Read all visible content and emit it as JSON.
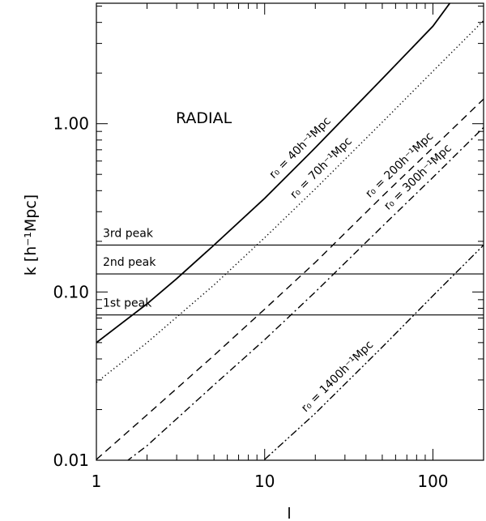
{
  "chart_data": {
    "type": "line",
    "title": "",
    "panel_label": "RADIAL",
    "xlabel": "l",
    "ylabel": "k [h⁻¹Mpc]",
    "x_scale": "log",
    "y_scale": "log",
    "xlim": [
      1,
      200
    ],
    "ylim": [
      0.01,
      5.2
    ],
    "grid": false,
    "x_ticks": [
      {
        "value": 1,
        "label": "1"
      },
      {
        "value": 10,
        "label": "10"
      },
      {
        "value": 100,
        "label": "100"
      }
    ],
    "y_ticks": [
      {
        "value": 0.01,
        "label": "0.01"
      },
      {
        "value": 0.1,
        "label": "0.10"
      },
      {
        "value": 1,
        "label": "1.00"
      }
    ],
    "peaks": [
      {
        "label": "3rd peak",
        "k": 0.19
      },
      {
        "label": "2nd peak",
        "k": 0.128
      },
      {
        "label": "1st peak",
        "k": 0.073
      }
    ],
    "series": [
      {
        "name": "r₀ = 40h⁻¹Mpc",
        "dash": "solid",
        "x": [
          1,
          2,
          3,
          5,
          10,
          20,
          50,
          100,
          126
        ],
        "y": [
          0.05,
          0.085,
          0.12,
          0.19,
          0.36,
          0.72,
          1.85,
          3.8,
          5.2
        ]
      },
      {
        "name": "r₀ = 70h⁻¹Mpc",
        "dash": "dotted",
        "x": [
          1,
          2,
          5,
          10,
          20,
          50,
          100,
          200
        ],
        "y": [
          0.029,
          0.05,
          0.11,
          0.21,
          0.41,
          1.02,
          2.05,
          4.1
        ]
      },
      {
        "name": "r₀ = 200h⁻¹Mpc",
        "dash": "dashed",
        "x": [
          1,
          2,
          5,
          10,
          20,
          50,
          100,
          200
        ],
        "y": [
          0.0101,
          0.0186,
          0.042,
          0.079,
          0.15,
          0.37,
          0.72,
          1.4
        ]
      },
      {
        "name": "r₀ = 300h⁻¹Mpc",
        "dash": "dashdot",
        "x": [
          1.5,
          2,
          5,
          10,
          20,
          50,
          100,
          200
        ],
        "y": [
          0.0098,
          0.0122,
          0.028,
          0.052,
          0.1,
          0.245,
          0.48,
          0.95
        ]
      },
      {
        "name": "r₀ = 1400h⁻¹Mpc",
        "dash": "dashdotdot",
        "x": [
          10,
          20,
          50,
          100,
          200
        ],
        "y": [
          0.0101,
          0.019,
          0.047,
          0.095,
          0.19
        ]
      }
    ]
  }
}
